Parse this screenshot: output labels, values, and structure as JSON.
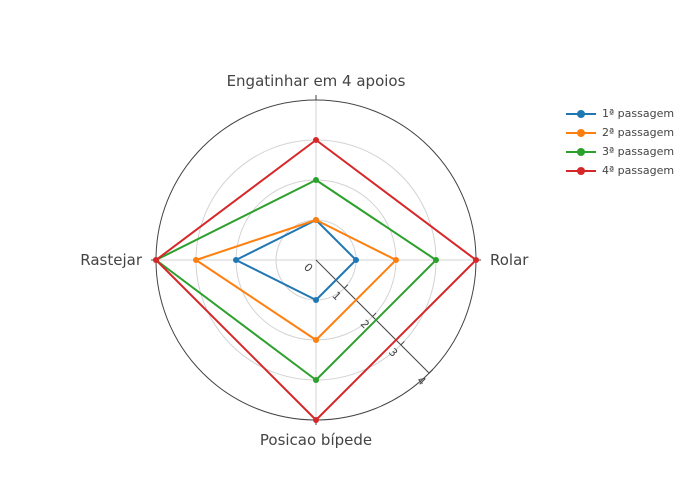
{
  "chart_data": {
    "type": "radar",
    "axes": [
      "Engatinhar em 4 apoios",
      "Rolar",
      "Posicao bípede",
      "Rastejar"
    ],
    "radial_range": [
      0,
      4
    ],
    "radial_ticks": [
      "0",
      "1",
      "2",
      "3",
      "4"
    ],
    "series": [
      {
        "name": "1ª passagem",
        "color": "#1f77b4",
        "values": [
          1,
          1,
          1,
          2
        ]
      },
      {
        "name": "2ª passagem",
        "color": "#ff7f0e",
        "values": [
          1,
          2,
          2,
          3
        ]
      },
      {
        "name": "3ª passagem",
        "color": "#2ca02c",
        "values": [
          2,
          3,
          3,
          4
        ]
      },
      {
        "name": "4ª passagem",
        "color": "#d62728",
        "values": [
          3,
          4,
          4,
          4
        ]
      }
    ],
    "legend_position": "top-right",
    "grid": true
  }
}
